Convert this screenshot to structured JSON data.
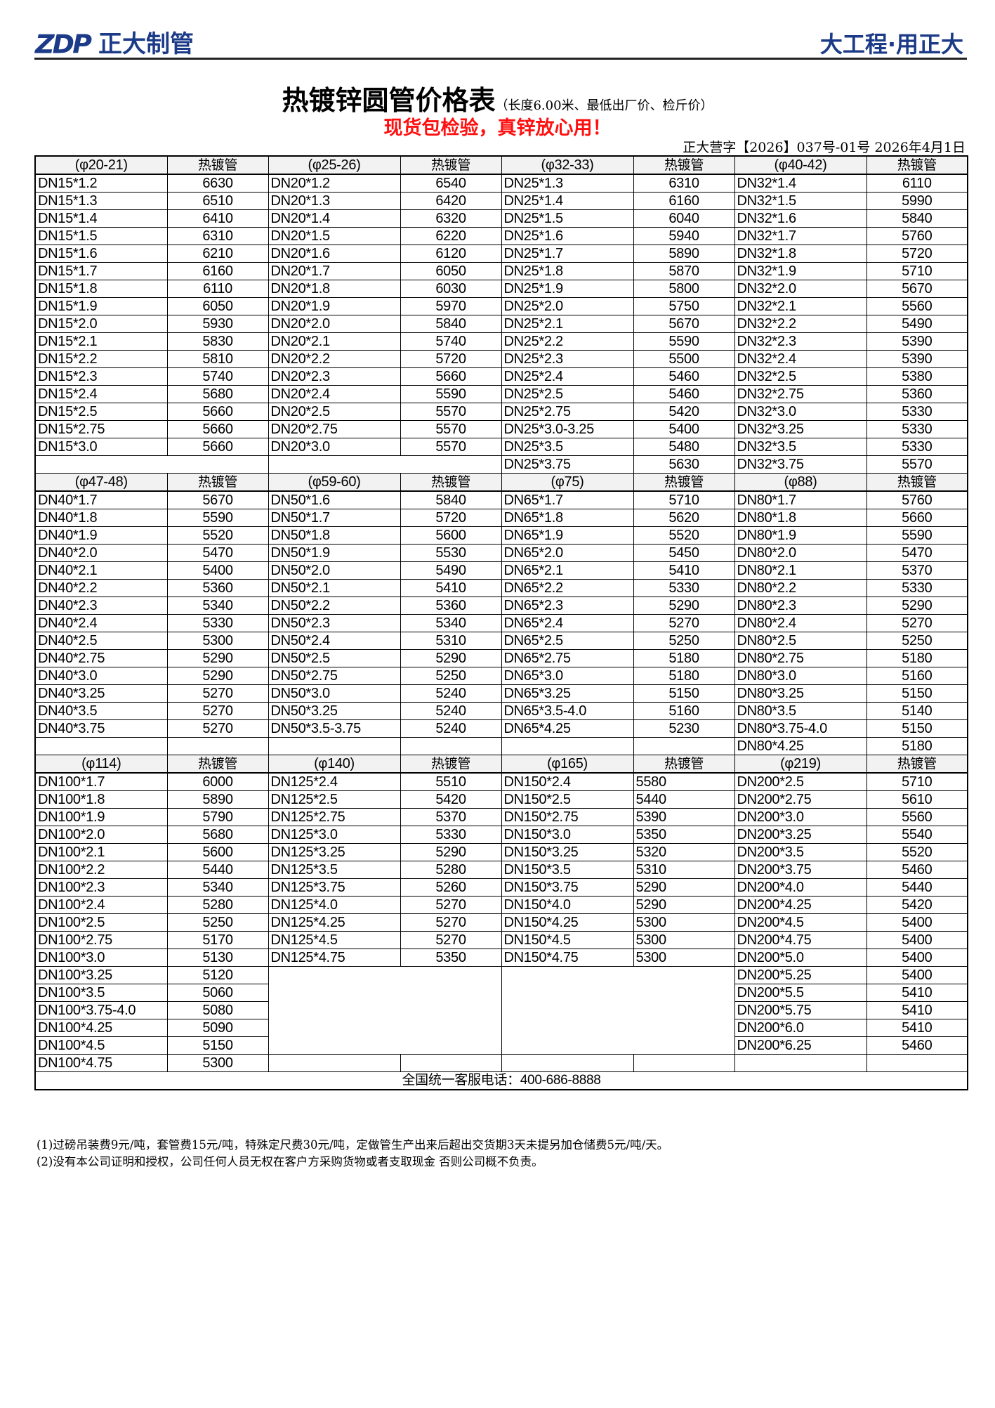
{
  "header": {
    "logo_mark": "ZDP",
    "logo_name": "正大制管",
    "slogan": "大工程·用正大",
    "brand_color": "#1b3a87"
  },
  "title": "热镀锌圆管价格表",
  "subtitle": "（长度6.00米、最低出厂价、检斤价）",
  "promo": "现货包检验，真锌放心用！",
  "promo_color": "#ff1010",
  "doc_number": "正大营字【2026】037号-01号  2026年4月1日",
  "pipe_type_label": "热镀管",
  "sections": [
    {
      "groups": [
        {
          "size": "(φ20-21)",
          "rows": [
            [
              "DN15*1.2",
              "6630"
            ],
            [
              "DN15*1.3",
              "6510"
            ],
            [
              "DN15*1.4",
              "6410"
            ],
            [
              "DN15*1.5",
              "6310"
            ],
            [
              "DN15*1.6",
              "6210"
            ],
            [
              "DN15*1.7",
              "6160"
            ],
            [
              "DN15*1.8",
              "6110"
            ],
            [
              "DN15*1.9",
              "6050"
            ],
            [
              "DN15*2.0",
              "5930"
            ],
            [
              "DN15*2.1",
              "5830"
            ],
            [
              "DN15*2.2",
              "5810"
            ],
            [
              "DN15*2.3",
              "5740"
            ],
            [
              "DN15*2.4",
              "5680"
            ],
            [
              "DN15*2.5",
              "5660"
            ],
            [
              "DN15*2.75",
              "5660"
            ],
            [
              "DN15*3.0",
              "5660"
            ]
          ]
        },
        {
          "size": "(φ25-26)",
          "rows": [
            [
              "DN20*1.2",
              "6540"
            ],
            [
              "DN20*1.3",
              "6420"
            ],
            [
              "DN20*1.4",
              "6320"
            ],
            [
              "DN20*1.5",
              "6220"
            ],
            [
              "DN20*1.6",
              "6120"
            ],
            [
              "DN20*1.7",
              "6050"
            ],
            [
              "DN20*1.8",
              "6030"
            ],
            [
              "DN20*1.9",
              "5970"
            ],
            [
              "DN20*2.0",
              "5840"
            ],
            [
              "DN20*2.1",
              "5740"
            ],
            [
              "DN20*2.2",
              "5720"
            ],
            [
              "DN20*2.3",
              "5660"
            ],
            [
              "DN20*2.4",
              "5590"
            ],
            [
              "DN20*2.5",
              "5570"
            ],
            [
              "DN20*2.75",
              "5570"
            ],
            [
              "DN20*3.0",
              "5570"
            ]
          ]
        },
        {
          "size": "(φ32-33)",
          "rows": [
            [
              "DN25*1.3",
              "6310"
            ],
            [
              "DN25*1.4",
              "6160"
            ],
            [
              "DN25*1.5",
              "6040"
            ],
            [
              "DN25*1.6",
              "5940"
            ],
            [
              "DN25*1.7",
              "5890"
            ],
            [
              "DN25*1.8",
              "5870"
            ],
            [
              "DN25*1.9",
              "5800"
            ],
            [
              "DN25*2.0",
              "5750"
            ],
            [
              "DN25*2.1",
              "5670"
            ],
            [
              "DN25*2.2",
              "5590"
            ],
            [
              "DN25*2.3",
              "5500"
            ],
            [
              "DN25*2.4",
              "5460"
            ],
            [
              "DN25*2.5",
              "5460"
            ],
            [
              "DN25*2.75",
              "5420"
            ],
            [
              "DN25*3.0-3.25",
              "5400"
            ],
            [
              "DN25*3.5",
              "5480"
            ],
            [
              "DN25*3.75",
              "5630"
            ]
          ]
        },
        {
          "size": "(φ40-42)",
          "rows": [
            [
              "DN32*1.4",
              "6110"
            ],
            [
              "DN32*1.5",
              "5990"
            ],
            [
              "DN32*1.6",
              "5840"
            ],
            [
              "DN32*1.7",
              "5760"
            ],
            [
              "DN32*1.8",
              "5720"
            ],
            [
              "DN32*1.9",
              "5710"
            ],
            [
              "DN32*2.0",
              "5670"
            ],
            [
              "DN32*2.1",
              "5560"
            ],
            [
              "DN32*2.2",
              "5490"
            ],
            [
              "DN32*2.3",
              "5390"
            ],
            [
              "DN32*2.4",
              "5390"
            ],
            [
              "DN32*2.5",
              "5380"
            ],
            [
              "DN32*2.75",
              "5360"
            ],
            [
              "DN32*3.0",
              "5330"
            ],
            [
              "DN32*3.25",
              "5330"
            ],
            [
              "DN32*3.5",
              "5330"
            ],
            [
              "DN32*3.75",
              "5570"
            ]
          ]
        }
      ]
    },
    {
      "groups": [
        {
          "size": "(φ47-48)",
          "rows": [
            [
              "DN40*1.7",
              "5670"
            ],
            [
              "DN40*1.8",
              "5590"
            ],
            [
              "DN40*1.9",
              "5520"
            ],
            [
              "DN40*2.0",
              "5470"
            ],
            [
              "DN40*2.1",
              "5400"
            ],
            [
              "DN40*2.2",
              "5360"
            ],
            [
              "DN40*2.3",
              "5340"
            ],
            [
              "DN40*2.4",
              "5330"
            ],
            [
              "DN40*2.5",
              "5300"
            ],
            [
              "DN40*2.75",
              "5290"
            ],
            [
              "DN40*3.0",
              "5290"
            ],
            [
              "DN40*3.25",
              "5270"
            ],
            [
              "DN40*3.5",
              "5270"
            ],
            [
              "DN40*3.75",
              "5270"
            ]
          ]
        },
        {
          "size": "(φ59-60)",
          "rows": [
            [
              "DN50*1.6",
              "5840"
            ],
            [
              "DN50*1.7",
              "5720"
            ],
            [
              "DN50*1.8",
              "5600"
            ],
            [
              "DN50*1.9",
              "5530"
            ],
            [
              "DN50*2.0",
              "5490"
            ],
            [
              "DN50*2.1",
              "5410"
            ],
            [
              "DN50*2.2",
              "5360"
            ],
            [
              "DN50*2.3",
              "5340"
            ],
            [
              "DN50*2.4",
              "5310"
            ],
            [
              "DN50*2.5",
              "5290"
            ],
            [
              "DN50*2.75",
              "5250"
            ],
            [
              "DN50*3.0",
              "5240"
            ],
            [
              "DN50*3.25",
              "5240"
            ],
            [
              "DN50*3.5-3.75",
              "5240"
            ]
          ]
        },
        {
          "size": "(φ75)",
          "rows": [
            [
              "DN65*1.7",
              "5710"
            ],
            [
              "DN65*1.8",
              "5620"
            ],
            [
              "DN65*1.9",
              "5520"
            ],
            [
              "DN65*2.0",
              "5450"
            ],
            [
              "DN65*2.1",
              "5410"
            ],
            [
              "DN65*2.2",
              "5330"
            ],
            [
              "DN65*2.3",
              "5290"
            ],
            [
              "DN65*2.4",
              "5270"
            ],
            [
              "DN65*2.5",
              "5250"
            ],
            [
              "DN65*2.75",
              "5180"
            ],
            [
              "DN65*3.0",
              "5180"
            ],
            [
              "DN65*3.25",
              "5150"
            ],
            [
              "DN65*3.5-4.0",
              "5160"
            ],
            [
              "DN65*4.25",
              "5230"
            ]
          ]
        },
        {
          "size": "(φ88)",
          "rows": [
            [
              "DN80*1.7",
              "5760"
            ],
            [
              "DN80*1.8",
              "5660"
            ],
            [
              "DN80*1.9",
              "5590"
            ],
            [
              "DN80*2.0",
              "5470"
            ],
            [
              "DN80*2.1",
              "5370"
            ],
            [
              "DN80*2.2",
              "5330"
            ],
            [
              "DN80*2.3",
              "5290"
            ],
            [
              "DN80*2.4",
              "5270"
            ],
            [
              "DN80*2.5",
              "5250"
            ],
            [
              "DN80*2.75",
              "5180"
            ],
            [
              "DN80*3.0",
              "5160"
            ],
            [
              "DN80*3.25",
              "5150"
            ],
            [
              "DN80*3.5",
              "5140"
            ],
            [
              "DN80*3.75-4.0",
              "5150"
            ],
            [
              "DN80*4.25",
              "5180"
            ]
          ]
        }
      ]
    },
    {
      "groups": [
        {
          "size": "(φ114)",
          "rows": [
            [
              "DN100*1.7",
              "6000"
            ],
            [
              "DN100*1.8",
              "5890"
            ],
            [
              "DN100*1.9",
              "5790"
            ],
            [
              "DN100*2.0",
              "5680"
            ],
            [
              "DN100*2.1",
              "5600"
            ],
            [
              "DN100*2.2",
              "5440"
            ],
            [
              "DN100*2.3",
              "5340"
            ],
            [
              "DN100*2.4",
              "5280"
            ],
            [
              "DN100*2.5",
              "5250"
            ],
            [
              "DN100*2.75",
              "5170"
            ],
            [
              "DN100*3.0",
              "5130"
            ],
            [
              "DN100*3.25",
              "5120"
            ],
            [
              "DN100*3.5",
              "5060"
            ],
            [
              "DN100*3.75-4.0",
              "5080"
            ],
            [
              "DN100*4.25",
              "5090"
            ],
            [
              "DN100*4.5",
              "5150"
            ],
            [
              "DN100*4.75",
              "5300"
            ]
          ]
        },
        {
          "size": "(φ140)",
          "rows": [
            [
              "DN125*2.4",
              "5510"
            ],
            [
              "DN125*2.5",
              "5420"
            ],
            [
              "DN125*2.75",
              "5370"
            ],
            [
              "DN125*3.0",
              "5330"
            ],
            [
              "DN125*3.25",
              "5290"
            ],
            [
              "DN125*3.5",
              "5280"
            ],
            [
              "DN125*3.75",
              "5260"
            ],
            [
              "DN125*4.0",
              "5270"
            ],
            [
              "DN125*4.25",
              "5270"
            ],
            [
              "DN125*4.5",
              "5270"
            ],
            [
              "DN125*4.75",
              "5350"
            ]
          ]
        },
        {
          "size": "(φ165)",
          "rows": [
            [
              "DN150*2.4",
              "5580"
            ],
            [
              "DN150*2.5",
              "5440"
            ],
            [
              "DN150*2.75",
              "5390"
            ],
            [
              "DN150*3.0",
              "5350"
            ],
            [
              "DN150*3.25",
              "5320"
            ],
            [
              "DN150*3.5",
              "5310"
            ],
            [
              "DN150*3.75",
              "5290"
            ],
            [
              "DN150*4.0",
              "5290"
            ],
            [
              "DN150*4.25",
              "5300"
            ],
            [
              "DN150*4.5",
              "5300"
            ],
            [
              "DN150*4.75",
              "5300"
            ]
          ]
        },
        {
          "size": "(φ219)",
          "rows": [
            [
              "DN200*2.5",
              "5710"
            ],
            [
              "DN200*2.75",
              "5610"
            ],
            [
              "DN200*3.0",
              "5560"
            ],
            [
              "DN200*3.25",
              "5540"
            ],
            [
              "DN200*3.5",
              "5520"
            ],
            [
              "DN200*3.75",
              "5460"
            ],
            [
              "DN200*4.0",
              "5440"
            ],
            [
              "DN200*4.25",
              "5420"
            ],
            [
              "DN200*4.5",
              "5400"
            ],
            [
              "DN200*4.75",
              "5400"
            ],
            [
              "DN200*5.0",
              "5400"
            ],
            [
              "DN200*5.25",
              "5400"
            ],
            [
              "DN200*5.5",
              "5410"
            ],
            [
              "DN200*5.75",
              "5410"
            ],
            [
              "DN200*6.0",
              "5410"
            ],
            [
              "DN200*6.25",
              "5460"
            ]
          ]
        }
      ]
    }
  ],
  "phone_line": "全国统一客服电话：400-686-8888",
  "notes": [
    "(1)过磅吊装费9元/吨，套管费15元/吨，特殊定尺费30元/吨，定做管生产出来后超出交货期3天未提另加仓储费5元/吨/天。",
    "(2)没有本公司证明和授权，公司任何人员无权在客户方采购货物或者支取现金  否则公司概不负责。"
  ]
}
